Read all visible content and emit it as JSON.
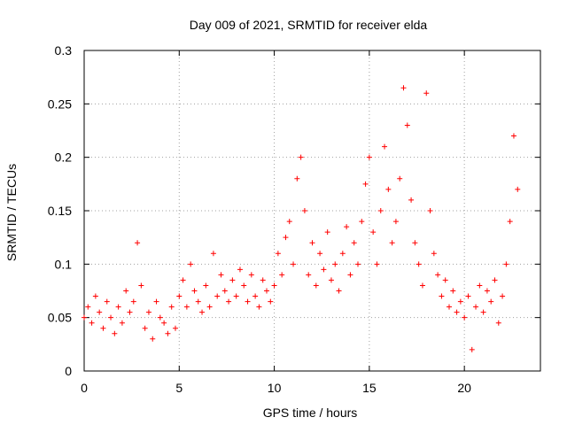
{
  "chart_data": {
    "type": "scatter",
    "title": "Day 009 of 2021, SRMTID for receiver elda",
    "xlabel": "GPS time / hours",
    "ylabel": "SRMTID / TECUs",
    "xlim": [
      0,
      24
    ],
    "ylim": [
      0,
      0.3
    ],
    "x_ticks": [
      0,
      5,
      10,
      15,
      20
    ],
    "x_tick_labels": [
      "0",
      "5",
      "10",
      "15",
      "20"
    ],
    "y_ticks": [
      0,
      0.05,
      0.1,
      0.15,
      0.2,
      0.25,
      0.3
    ],
    "y_tick_labels": [
      "0",
      "0.05",
      "0.1",
      "0.15",
      "0.2",
      "0.25",
      "0.3"
    ],
    "grid": true,
    "marker": "+",
    "color": "#ff0000",
    "series": [
      {
        "name": "SRMTID",
        "points": [
          [
            0.0,
            0.05
          ],
          [
            0.2,
            0.06
          ],
          [
            0.4,
            0.045
          ],
          [
            0.6,
            0.07
          ],
          [
            0.8,
            0.055
          ],
          [
            1.0,
            0.04
          ],
          [
            1.2,
            0.065
          ],
          [
            1.4,
            0.05
          ],
          [
            1.6,
            0.035
          ],
          [
            1.8,
            0.06
          ],
          [
            2.0,
            0.045
          ],
          [
            2.2,
            0.075
          ],
          [
            2.4,
            0.055
          ],
          [
            2.6,
            0.065
          ],
          [
            2.8,
            0.12
          ],
          [
            3.0,
            0.08
          ],
          [
            3.2,
            0.04
          ],
          [
            3.4,
            0.055
          ],
          [
            3.6,
            0.03
          ],
          [
            3.8,
            0.065
          ],
          [
            4.0,
            0.05
          ],
          [
            4.2,
            0.045
          ],
          [
            4.4,
            0.035
          ],
          [
            4.6,
            0.06
          ],
          [
            4.8,
            0.04
          ],
          [
            5.0,
            0.07
          ],
          [
            5.2,
            0.085
          ],
          [
            5.4,
            0.06
          ],
          [
            5.6,
            0.1
          ],
          [
            5.8,
            0.075
          ],
          [
            6.0,
            0.065
          ],
          [
            6.2,
            0.055
          ],
          [
            6.4,
            0.08
          ],
          [
            6.6,
            0.06
          ],
          [
            6.8,
            0.11
          ],
          [
            7.0,
            0.07
          ],
          [
            7.2,
            0.09
          ],
          [
            7.4,
            0.075
          ],
          [
            7.6,
            0.065
          ],
          [
            7.8,
            0.085
          ],
          [
            8.0,
            0.07
          ],
          [
            8.2,
            0.095
          ],
          [
            8.4,
            0.08
          ],
          [
            8.6,
            0.065
          ],
          [
            8.8,
            0.09
          ],
          [
            9.0,
            0.07
          ],
          [
            9.2,
            0.06
          ],
          [
            9.4,
            0.085
          ],
          [
            9.6,
            0.075
          ],
          [
            9.8,
            0.065
          ],
          [
            10.0,
            0.08
          ],
          [
            10.2,
            0.11
          ],
          [
            10.4,
            0.09
          ],
          [
            10.6,
            0.125
          ],
          [
            10.8,
            0.14
          ],
          [
            11.0,
            0.1
          ],
          [
            11.2,
            0.18
          ],
          [
            11.4,
            0.2
          ],
          [
            11.6,
            0.15
          ],
          [
            11.8,
            0.09
          ],
          [
            12.0,
            0.12
          ],
          [
            12.2,
            0.08
          ],
          [
            12.4,
            0.11
          ],
          [
            12.6,
            0.095
          ],
          [
            12.8,
            0.13
          ],
          [
            13.0,
            0.085
          ],
          [
            13.2,
            0.1
          ],
          [
            13.4,
            0.075
          ],
          [
            13.6,
            0.11
          ],
          [
            13.8,
            0.135
          ],
          [
            14.0,
            0.09
          ],
          [
            14.2,
            0.12
          ],
          [
            14.4,
            0.1
          ],
          [
            14.6,
            0.14
          ],
          [
            14.8,
            0.175
          ],
          [
            15.0,
            0.2
          ],
          [
            15.2,
            0.13
          ],
          [
            15.4,
            0.1
          ],
          [
            15.6,
            0.15
          ],
          [
            15.8,
            0.21
          ],
          [
            16.0,
            0.17
          ],
          [
            16.2,
            0.12
          ],
          [
            16.4,
            0.14
          ],
          [
            16.6,
            0.18
          ],
          [
            16.8,
            0.265
          ],
          [
            17.0,
            0.23
          ],
          [
            17.2,
            0.16
          ],
          [
            17.4,
            0.12
          ],
          [
            17.6,
            0.1
          ],
          [
            17.8,
            0.08
          ],
          [
            18.0,
            0.26
          ],
          [
            18.2,
            0.15
          ],
          [
            18.4,
            0.11
          ],
          [
            18.6,
            0.09
          ],
          [
            18.8,
            0.07
          ],
          [
            19.0,
            0.085
          ],
          [
            19.2,
            0.06
          ],
          [
            19.4,
            0.075
          ],
          [
            19.6,
            0.055
          ],
          [
            19.8,
            0.065
          ],
          [
            20.0,
            0.05
          ],
          [
            20.2,
            0.07
          ],
          [
            20.4,
            0.02
          ],
          [
            20.6,
            0.06
          ],
          [
            20.8,
            0.08
          ],
          [
            21.0,
            0.055
          ],
          [
            21.2,
            0.075
          ],
          [
            21.4,
            0.065
          ],
          [
            21.6,
            0.085
          ],
          [
            21.8,
            0.045
          ],
          [
            22.0,
            0.07
          ],
          [
            22.2,
            0.1
          ],
          [
            22.4,
            0.14
          ],
          [
            22.6,
            0.22
          ],
          [
            22.8,
            0.17
          ]
        ]
      }
    ]
  }
}
